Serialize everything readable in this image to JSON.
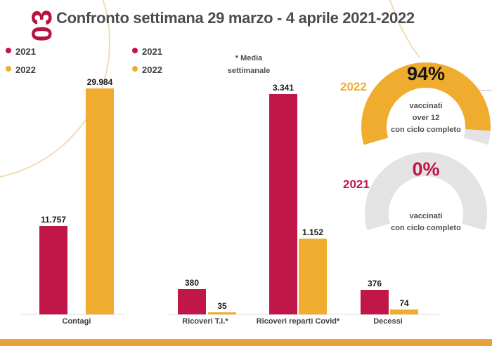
{
  "page_number": "03",
  "title": "Confronto settimana 29 marzo - 4 aprile 2021-2022",
  "note": {
    "line1": "* Media",
    "line2": "settimanale"
  },
  "colors": {
    "c2021": "#C01648",
    "c2022": "#F0AC2F",
    "title": "#4D4D4F",
    "page_number": "#B5123E",
    "track": "#E3E3E3",
    "band": "#E8A23B",
    "decor": "#F2DCB4"
  },
  "legends": [
    {
      "items": [
        {
          "label": "2021",
          "color": "c2021"
        },
        {
          "label": "2022",
          "color": "c2022"
        }
      ]
    },
    {
      "items": [
        {
          "label": "2021",
          "color": "c2021"
        },
        {
          "label": "2022",
          "color": "c2022"
        }
      ]
    }
  ],
  "chart_data": [
    {
      "type": "bar",
      "title": "",
      "categories": [
        "Contagi"
      ],
      "series": [
        {
          "name": "2021",
          "values": [
            11757
          ],
          "display": [
            "11.757"
          ]
        },
        {
          "name": "2022",
          "values": [
            29984
          ],
          "display": [
            "29.984"
          ]
        }
      ],
      "xlabel": "",
      "ylabel": "",
      "ylim": [
        0,
        30000
      ],
      "grid": false,
      "legend_position": "top-left"
    },
    {
      "type": "bar",
      "title": "",
      "categories": [
        "Ricoveri T.I.*",
        "Ricoveri reparti Covid*",
        "Decessi"
      ],
      "series": [
        {
          "name": "2021",
          "values": [
            380,
            3341,
            376
          ],
          "display": [
            "380",
            "3.341",
            "376"
          ]
        },
        {
          "name": "2022",
          "values": [
            35,
            1152,
            74
          ],
          "display": [
            "35",
            "1.152",
            "74"
          ]
        }
      ],
      "xlabel": "",
      "ylabel": "",
      "ylim": [
        0,
        3430
      ],
      "grid": false,
      "legend_position": "top-left"
    }
  ],
  "gauges": [
    {
      "year": "2022",
      "percent": 94,
      "percent_label": "94%",
      "lines": [
        "vaccinati",
        "over 12",
        "con ciclo completo"
      ],
      "fill_color": "#F0AC2F",
      "year_color": "#F0AC2F",
      "percent_color": "#141414"
    },
    {
      "year": "2021",
      "percent": 0,
      "percent_label": "0%",
      "lines": [
        "vaccinati",
        "con ciclo completo"
      ],
      "fill_color": "#C01648",
      "year_color": "#C01648",
      "percent_color": "#C01648"
    }
  ]
}
